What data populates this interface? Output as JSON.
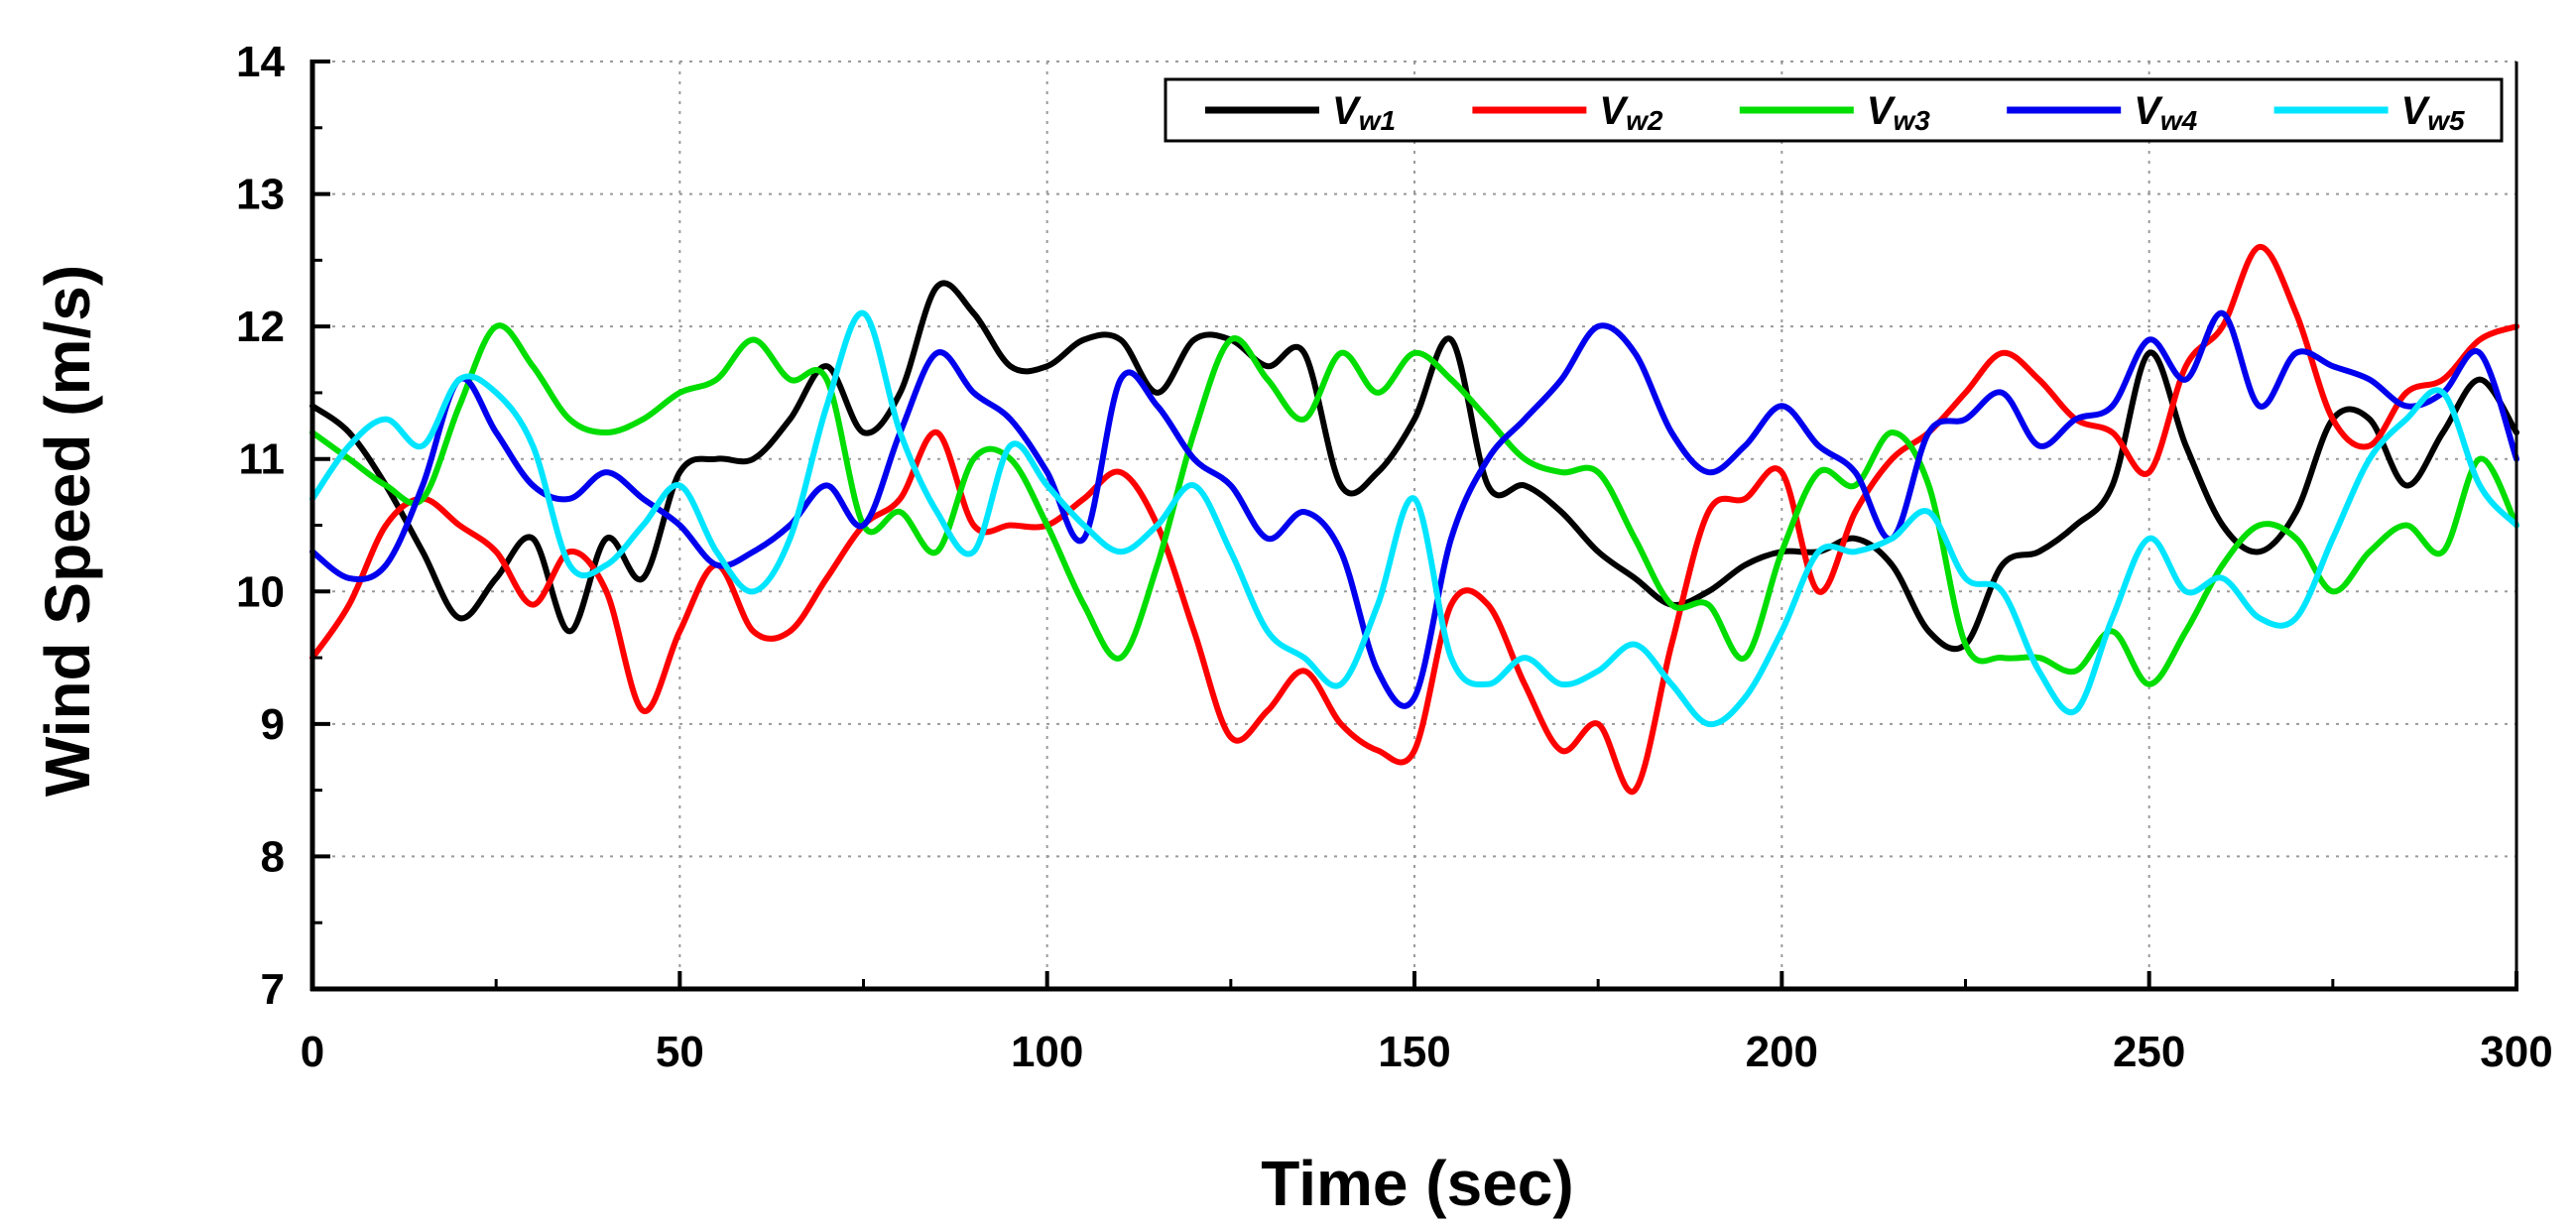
{
  "chart_data": {
    "type": "line",
    "title": "",
    "xlabel": "Time (sec)",
    "ylabel": "Wind Speed (m/s)",
    "xlim": [
      0,
      300
    ],
    "ylim": [
      7,
      14
    ],
    "xticks": [
      0,
      50,
      100,
      150,
      200,
      250,
      300
    ],
    "yticks": [
      7,
      8,
      9,
      10,
      11,
      12,
      13,
      14
    ],
    "grid": true,
    "legend_position": "top-right",
    "x": [
      0,
      5,
      10,
      15,
      20,
      25,
      30,
      35,
      40,
      45,
      50,
      55,
      60,
      65,
      70,
      75,
      80,
      85,
      90,
      95,
      100,
      105,
      110,
      115,
      120,
      125,
      130,
      135,
      140,
      145,
      150,
      155,
      160,
      165,
      170,
      175,
      180,
      185,
      190,
      195,
      200,
      205,
      210,
      215,
      220,
      225,
      230,
      235,
      240,
      245,
      250,
      255,
      260,
      265,
      270,
      275,
      280,
      285,
      290,
      295,
      300
    ],
    "series": [
      {
        "name": "Vw1",
        "main": "V",
        "sub": "w1",
        "color": "#000000",
        "values": [
          11.4,
          11.2,
          10.8,
          10.3,
          9.8,
          10.1,
          10.4,
          9.7,
          10.4,
          10.1,
          10.9,
          11.0,
          11.0,
          11.3,
          11.7,
          11.2,
          11.5,
          12.3,
          12.1,
          11.7,
          11.7,
          11.9,
          11.9,
          11.5,
          11.9,
          11.9,
          11.7,
          11.8,
          10.8,
          10.9,
          11.3,
          11.9,
          10.8,
          10.8,
          10.6,
          10.3,
          10.1,
          9.9,
          10.0,
          10.2,
          10.3,
          10.3,
          10.4,
          10.2,
          9.7,
          9.6,
          10.2,
          10.3,
          10.5,
          10.8,
          11.8,
          11.1,
          10.5,
          10.3,
          10.6,
          11.3,
          11.3,
          10.8,
          11.2,
          11.6,
          11.2
        ]
      },
      {
        "name": "Vw2",
        "main": "V",
        "sub": "w2",
        "color": "#ff0000",
        "values": [
          9.5,
          9.9,
          10.5,
          10.7,
          10.5,
          10.3,
          9.9,
          10.3,
          10.0,
          9.1,
          9.7,
          10.2,
          9.7,
          9.7,
          10.1,
          10.5,
          10.7,
          11.2,
          10.5,
          10.5,
          10.5,
          10.7,
          10.9,
          10.5,
          9.7,
          8.9,
          9.1,
          9.4,
          9.0,
          8.8,
          8.8,
          9.9,
          9.9,
          9.3,
          8.8,
          9.0,
          8.5,
          9.6,
          10.6,
          10.7,
          10.9,
          10.0,
          10.6,
          11.0,
          11.2,
          11.5,
          11.8,
          11.6,
          11.3,
          11.2,
          10.9,
          11.7,
          12.0,
          12.6,
          12.1,
          11.3,
          11.1,
          11.5,
          11.6,
          11.9,
          12.0
        ]
      },
      {
        "name": "Vw3",
        "main": "V",
        "sub": "w3",
        "color": "#00dd00",
        "values": [
          11.2,
          11.0,
          10.8,
          10.7,
          11.4,
          12.0,
          11.7,
          11.3,
          11.2,
          11.3,
          11.5,
          11.6,
          11.9,
          11.6,
          11.6,
          10.5,
          10.6,
          10.3,
          11.0,
          11.0,
          10.5,
          9.9,
          9.5,
          10.2,
          11.2,
          11.9,
          11.6,
          11.3,
          11.8,
          11.5,
          11.8,
          11.6,
          11.3,
          11.0,
          10.9,
          10.9,
          10.4,
          9.9,
          9.9,
          9.5,
          10.3,
          10.9,
          10.8,
          11.2,
          10.8,
          9.6,
          9.5,
          9.5,
          9.4,
          9.7,
          9.3,
          9.7,
          10.2,
          10.5,
          10.4,
          10.0,
          10.3,
          10.5,
          10.3,
          11.0,
          10.5
        ]
      },
      {
        "name": "Vw4",
        "main": "V",
        "sub": "w4",
        "color": "#0000ee",
        "values": [
          10.3,
          10.1,
          10.2,
          10.8,
          11.6,
          11.2,
          10.8,
          10.7,
          10.9,
          10.7,
          10.5,
          10.2,
          10.3,
          10.5,
          10.8,
          10.5,
          11.2,
          11.8,
          11.5,
          11.3,
          10.9,
          10.4,
          11.6,
          11.4,
          11.0,
          10.8,
          10.4,
          10.6,
          10.3,
          9.4,
          9.2,
          10.4,
          11.0,
          11.3,
          11.6,
          12.0,
          11.8,
          11.2,
          10.9,
          11.1,
          11.4,
          11.1,
          10.9,
          10.4,
          11.2,
          11.3,
          11.5,
          11.1,
          11.3,
          11.4,
          11.9,
          11.6,
          12.1,
          11.4,
          11.8,
          11.7,
          11.6,
          11.4,
          11.5,
          11.8,
          11.0
        ]
      },
      {
        "name": "Vw5",
        "main": "V",
        "sub": "w5",
        "color": "#00e5ff",
        "values": [
          10.7,
          11.1,
          11.3,
          11.1,
          11.6,
          11.5,
          11.1,
          10.2,
          10.2,
          10.5,
          10.8,
          10.3,
          10.0,
          10.4,
          11.4,
          12.1,
          11.2,
          10.6,
          10.3,
          11.1,
          10.8,
          10.5,
          10.3,
          10.5,
          10.8,
          10.3,
          9.7,
          9.5,
          9.3,
          9.9,
          10.7,
          9.5,
          9.3,
          9.5,
          9.3,
          9.4,
          9.6,
          9.3,
          9.0,
          9.2,
          9.7,
          10.3,
          10.3,
          10.4,
          10.6,
          10.1,
          10.0,
          9.4,
          9.1,
          9.8,
          10.4,
          10.0,
          10.1,
          9.8,
          9.8,
          10.4,
          11.0,
          11.3,
          11.5,
          10.8,
          10.5
        ]
      }
    ]
  }
}
